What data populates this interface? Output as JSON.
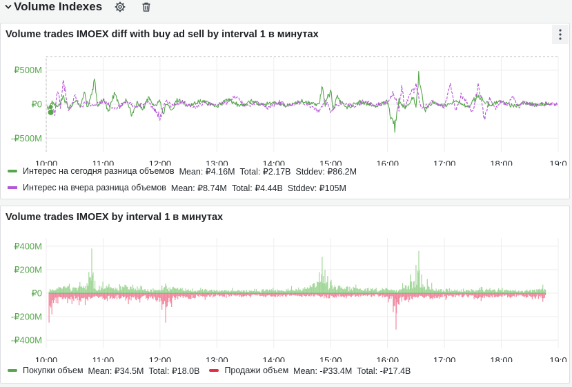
{
  "row": {
    "title": "Volume Indexes",
    "icons": [
      "chevron-down-icon",
      "gear-icon",
      "trash-icon"
    ]
  },
  "colors": {
    "green": "#56a64b",
    "green_fill": "#a3d79a",
    "purple": "#b355d6",
    "red": "#e02f44",
    "red_fill": "#f08aa0",
    "grid": "#ececec"
  },
  "panel1": {
    "title": "Volume trades IMOEX diff with buy ad sell by interval 1 в минутах",
    "menu_icon": "more-vertical-icon",
    "legend": [
      {
        "color": "#56a64b",
        "style": "solid",
        "name": "Интерес на сегодня разница объемов",
        "mean": "Mean: ₽4.16M",
        "total": "Total: ₽2.17B",
        "stddev": "Stddev: ₽86.2M"
      },
      {
        "color": "#b355d6",
        "style": "dashed",
        "name": "Интерес на вчера разница объемов",
        "mean": "Mean: ₽8.74M",
        "total": "Total: ₽4.44B",
        "stddev": "Stddev: ₽105M"
      }
    ]
  },
  "panel2": {
    "title": "Volume trades IMOEX by interval 1 в минутах",
    "legend": [
      {
        "color": "#56a64b",
        "name": "Покупки объем",
        "mean": "Mean: ₽34.5M",
        "total": "Total: ₽18.0B"
      },
      {
        "color": "#e02f44",
        "name": "Продажи объем",
        "mean": "Mean: -₽33.4M",
        "total": "Total: -₽17.4B"
      }
    ]
  },
  "chart_data": [
    {
      "type": "line",
      "title": "Volume trades IMOEX diff with buy ad sell by interval 1 в минутах",
      "x_ticks": [
        "10:00",
        "11:00",
        "12:00",
        "13:00",
        "14:00",
        "15:00",
        "16:00",
        "17:00",
        "18:00",
        "19:0"
      ],
      "y_ticks": [
        "₽500M",
        "₽0",
        "-₽500M"
      ],
      "y_tick_values": [
        500,
        0,
        -500
      ],
      "ylim": [
        -700,
        700
      ],
      "y_unit": "₽M",
      "x_range_hours": [
        10,
        19
      ],
      "grid": true,
      "series": [
        {
          "name": "Интерес на сегодня разница объемов",
          "color": "#56a64b",
          "style": "solid",
          "points": [
            [
              10.05,
              -70
            ],
            [
              10.1,
              40
            ],
            [
              10.2,
              -50
            ],
            [
              10.3,
              120
            ],
            [
              10.4,
              -80
            ],
            [
              10.5,
              60
            ],
            [
              10.6,
              -30
            ],
            [
              10.68,
              230
            ],
            [
              10.72,
              -60
            ],
            [
              10.8,
              180
            ],
            [
              10.85,
              520
            ],
            [
              10.9,
              -40
            ],
            [
              11.0,
              90
            ],
            [
              11.1,
              -120
            ],
            [
              11.2,
              210
            ],
            [
              11.3,
              -60
            ],
            [
              11.4,
              80
            ],
            [
              11.5,
              -200
            ],
            [
              11.6,
              30
            ],
            [
              11.7,
              -90
            ],
            [
              11.8,
              120
            ],
            [
              11.9,
              -50
            ],
            [
              12.0,
              70
            ],
            [
              12.05,
              -250
            ],
            [
              12.1,
              40
            ],
            [
              12.2,
              -120
            ],
            [
              12.3,
              80
            ],
            [
              12.5,
              -30
            ],
            [
              12.7,
              60
            ],
            [
              13.0,
              -40
            ],
            [
              13.2,
              90
            ],
            [
              13.4,
              -30
            ],
            [
              13.6,
              50
            ],
            [
              13.8,
              -20
            ],
            [
              14.0,
              40
            ],
            [
              14.2,
              -30
            ],
            [
              14.5,
              60
            ],
            [
              14.8,
              -20
            ],
            [
              14.85,
              370
            ],
            [
              14.9,
              -20
            ],
            [
              15.0,
              250
            ],
            [
              15.05,
              -150
            ],
            [
              15.1,
              120
            ],
            [
              15.3,
              -60
            ],
            [
              15.5,
              40
            ],
            [
              15.8,
              -30
            ],
            [
              16.0,
              50
            ],
            [
              16.05,
              -200
            ],
            [
              16.12,
              -450
            ],
            [
              16.2,
              60
            ],
            [
              16.3,
              -80
            ],
            [
              16.4,
              30
            ],
            [
              16.45,
              180
            ],
            [
              16.5,
              -40
            ],
            [
              16.55,
              520
            ],
            [
              16.6,
              200
            ],
            [
              16.65,
              -120
            ],
            [
              16.8,
              40
            ],
            [
              17.0,
              -30
            ],
            [
              17.2,
              60
            ],
            [
              17.4,
              -60
            ],
            [
              17.6,
              160
            ],
            [
              17.8,
              -30
            ],
            [
              18.0,
              60
            ],
            [
              18.2,
              -40
            ],
            [
              18.4,
              30
            ],
            [
              18.6,
              -10
            ],
            [
              18.75,
              20
            ],
            [
              18.85,
              0
            ]
          ]
        },
        {
          "name": "Интерес на вчера разница объемов",
          "color": "#b355d6",
          "style": "dashed",
          "points": [
            [
              10.05,
              -40
            ],
            [
              10.15,
              -180
            ],
            [
              10.2,
              320
            ],
            [
              10.25,
              -80
            ],
            [
              10.3,
              520
            ],
            [
              10.35,
              100
            ],
            [
              10.4,
              -140
            ],
            [
              10.5,
              160
            ],
            [
              10.6,
              -60
            ],
            [
              10.7,
              40
            ],
            [
              10.8,
              -20
            ],
            [
              11.0,
              60
            ],
            [
              11.2,
              -80
            ],
            [
              11.4,
              40
            ],
            [
              11.6,
              -60
            ],
            [
              11.8,
              50
            ],
            [
              11.9,
              -120
            ],
            [
              12.0,
              -250
            ],
            [
              12.1,
              70
            ],
            [
              12.2,
              -30
            ],
            [
              12.4,
              40
            ],
            [
              12.6,
              -50
            ],
            [
              12.8,
              30
            ],
            [
              13.0,
              -20
            ],
            [
              13.2,
              40
            ],
            [
              13.35,
              160
            ],
            [
              13.5,
              -40
            ],
            [
              13.7,
              30
            ],
            [
              13.9,
              -60
            ],
            [
              14.1,
              40
            ],
            [
              14.3,
              -30
            ],
            [
              14.5,
              50
            ],
            [
              14.7,
              -80
            ],
            [
              14.8,
              -150
            ],
            [
              14.9,
              80
            ],
            [
              15.0,
              -120
            ],
            [
              15.2,
              40
            ],
            [
              15.4,
              -30
            ],
            [
              15.6,
              60
            ],
            [
              15.8,
              -20
            ],
            [
              16.0,
              40
            ],
            [
              16.1,
              260
            ],
            [
              16.2,
              -120
            ],
            [
              16.25,
              350
            ],
            [
              16.3,
              -60
            ],
            [
              16.4,
              220
            ],
            [
              16.5,
              320
            ],
            [
              16.6,
              -80
            ],
            [
              16.8,
              40
            ],
            [
              17.0,
              -60
            ],
            [
              17.1,
              350
            ],
            [
              17.2,
              -120
            ],
            [
              17.3,
              200
            ],
            [
              17.5,
              -150
            ],
            [
              17.6,
              380
            ],
            [
              17.7,
              -280
            ],
            [
              17.8,
              120
            ],
            [
              17.9,
              -100
            ],
            [
              18.0,
              60
            ],
            [
              18.1,
              -40
            ],
            [
              18.2,
              140
            ],
            [
              18.3,
              -50
            ],
            [
              18.4,
              40
            ],
            [
              18.6,
              -20
            ],
            [
              18.8,
              0
            ],
            [
              19.0,
              0
            ]
          ]
        }
      ]
    },
    {
      "type": "bar",
      "title": "Volume trades IMOEX by interval 1 в минутах",
      "x_ticks": [
        "10:00",
        "11:00",
        "12:00",
        "13:00",
        "14:00",
        "15:00",
        "16:00",
        "17:00",
        "18:00",
        "19:0"
      ],
      "y_ticks": [
        "₽400M",
        "₽200M",
        "₽0",
        "-₽200M",
        "-₽400M"
      ],
      "y_tick_values": [
        400,
        200,
        0,
        -200,
        -400
      ],
      "ylim": [
        -470,
        470
      ],
      "y_unit": "₽M",
      "x_range_hours": [
        10,
        19
      ],
      "grid": true,
      "series": [
        {
          "name": "Покупки объем",
          "color": "#56a64b",
          "bar_color": "#a3d79a",
          "peaks": [
            [
              10.1,
              60
            ],
            [
              10.3,
              90
            ],
            [
              10.5,
              70
            ],
            [
              10.7,
              110
            ],
            [
              10.75,
              180
            ],
            [
              10.8,
              380
            ],
            [
              10.85,
              120
            ],
            [
              10.9,
              90
            ],
            [
              11.1,
              100
            ],
            [
              11.2,
              60
            ],
            [
              11.3,
              110
            ],
            [
              11.5,
              90
            ],
            [
              11.7,
              70
            ],
            [
              11.9,
              40
            ],
            [
              12.1,
              80
            ],
            [
              12.5,
              50
            ],
            [
              13.0,
              40
            ],
            [
              13.5,
              30
            ],
            [
              14.0,
              40
            ],
            [
              14.5,
              60
            ],
            [
              14.8,
              180
            ],
            [
              14.85,
              310
            ],
            [
              14.9,
              200
            ],
            [
              15.0,
              140
            ],
            [
              15.1,
              100
            ],
            [
              15.3,
              90
            ],
            [
              15.5,
              80
            ],
            [
              15.7,
              60
            ],
            [
              16.0,
              50
            ],
            [
              16.2,
              40
            ],
            [
              16.4,
              160
            ],
            [
              16.5,
              240
            ],
            [
              16.55,
              360
            ],
            [
              16.6,
              160
            ],
            [
              16.8,
              70
            ],
            [
              17.0,
              50
            ],
            [
              17.3,
              40
            ],
            [
              17.6,
              50
            ],
            [
              18.0,
              40
            ],
            [
              18.4,
              30
            ],
            [
              18.75,
              70
            ]
          ]
        },
        {
          "name": "Продажи объем",
          "color": "#e02f44",
          "bar_color": "#f08aa0",
          "peaks": [
            [
              10.05,
              -250
            ],
            [
              10.1,
              -180
            ],
            [
              10.2,
              -130
            ],
            [
              10.3,
              -90
            ],
            [
              10.5,
              -100
            ],
            [
              10.7,
              -120
            ],
            [
              10.9,
              -70
            ],
            [
              11.1,
              -100
            ],
            [
              11.3,
              -80
            ],
            [
              11.5,
              -110
            ],
            [
              11.7,
              -80
            ],
            [
              11.9,
              -60
            ],
            [
              12.1,
              -250
            ],
            [
              12.3,
              -60
            ],
            [
              12.5,
              -70
            ],
            [
              12.8,
              -50
            ],
            [
              13.0,
              -40
            ],
            [
              13.3,
              -50
            ],
            [
              13.6,
              -30
            ],
            [
              14.0,
              -40
            ],
            [
              14.3,
              -30
            ],
            [
              14.7,
              -30
            ],
            [
              14.9,
              -60
            ],
            [
              15.1,
              -50
            ],
            [
              15.3,
              -40
            ],
            [
              15.6,
              -40
            ],
            [
              15.8,
              -30
            ],
            [
              16.0,
              -60
            ],
            [
              16.1,
              -160
            ],
            [
              16.15,
              -310
            ],
            [
              16.2,
              -120
            ],
            [
              16.4,
              -80
            ],
            [
              16.5,
              -60
            ],
            [
              16.8,
              -70
            ],
            [
              17.0,
              -50
            ],
            [
              17.3,
              -40
            ],
            [
              17.6,
              -60
            ],
            [
              18.0,
              -50
            ],
            [
              18.3,
              -40
            ],
            [
              18.75,
              -70
            ]
          ]
        }
      ]
    }
  ]
}
